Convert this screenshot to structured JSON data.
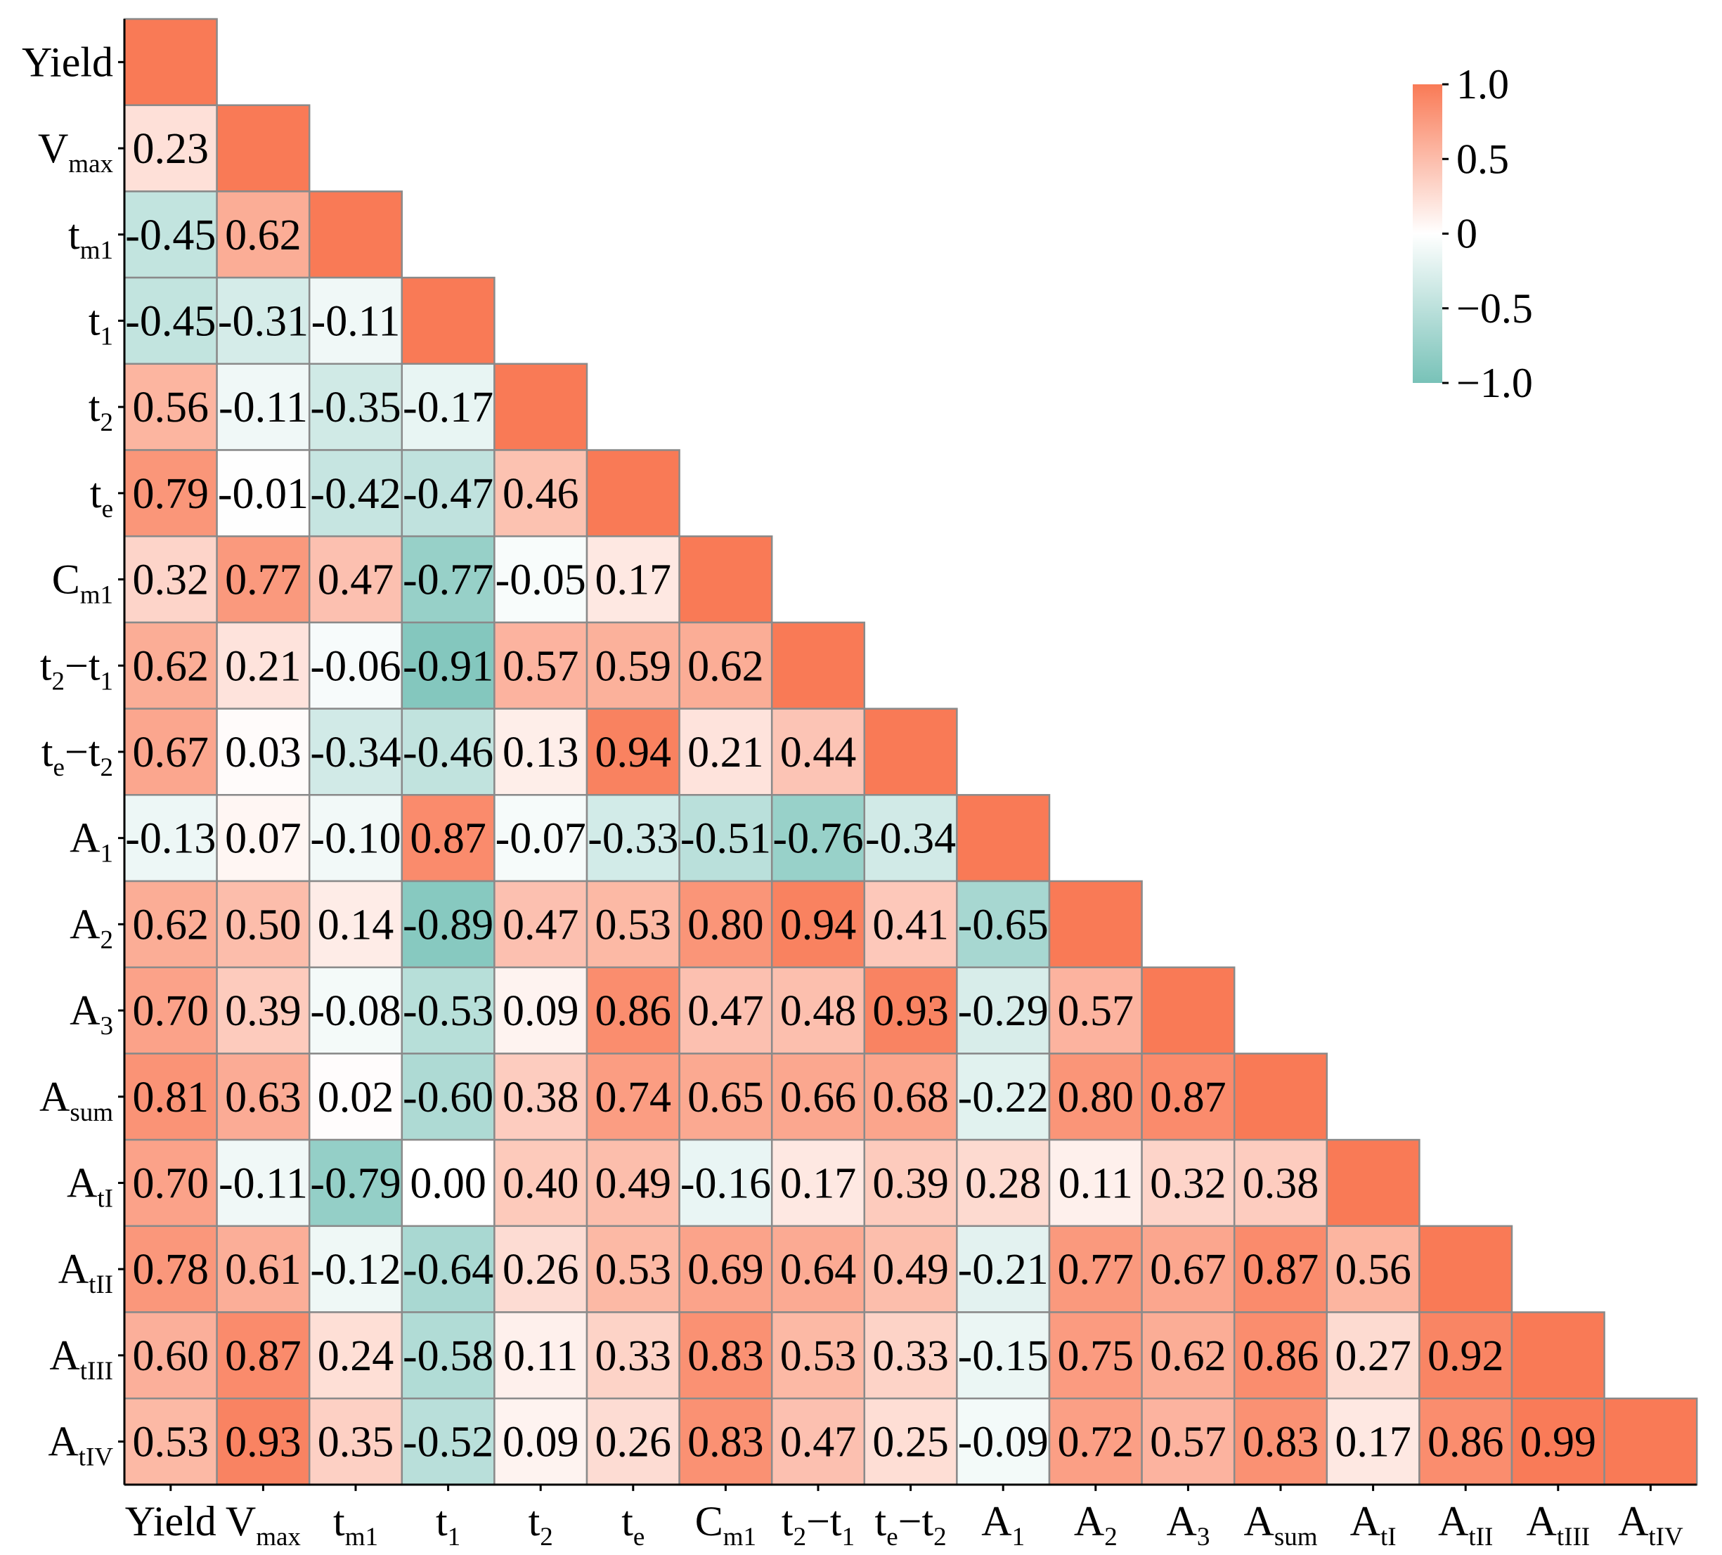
{
  "chart_data": {
    "type": "heatmap",
    "title": "",
    "variables": [
      {
        "base": "Yield",
        "sub": ""
      },
      {
        "base": "V",
        "sub": "max"
      },
      {
        "base": "t",
        "sub": "m1"
      },
      {
        "base": "t",
        "sub": "1"
      },
      {
        "base": "t",
        "sub": "2"
      },
      {
        "base": "t",
        "sub": "e"
      },
      {
        "base": "C",
        "sub": "m1"
      },
      {
        "base": "t",
        "sub": "2",
        "tail": "−t",
        "sub2": "1"
      },
      {
        "base": "t",
        "sub": "e",
        "tail": "−t",
        "sub2": "2"
      },
      {
        "base": "A",
        "sub": "1"
      },
      {
        "base": "A",
        "sub": "2"
      },
      {
        "base": "A",
        "sub": "3"
      },
      {
        "base": "A",
        "sub": "sum"
      },
      {
        "base": "A",
        "sub": "tI"
      },
      {
        "base": "A",
        "sub": "tII"
      },
      {
        "base": "A",
        "sub": "tIII"
      },
      {
        "base": "A",
        "sub": "tIV"
      }
    ],
    "lower_triangle": [
      [],
      [
        "0.23"
      ],
      [
        "-0.45",
        "0.62"
      ],
      [
        "-0.45",
        "-0.31",
        "-0.11"
      ],
      [
        "0.56",
        "-0.11",
        "-0.35",
        "-0.17"
      ],
      [
        "0.79",
        "-0.01",
        "-0.42",
        "-0.47",
        "0.46"
      ],
      [
        "0.32",
        "0.77",
        "0.47",
        "-0.77",
        "-0.05",
        "0.17"
      ],
      [
        "0.62",
        "0.21",
        "-0.06",
        "-0.91",
        "0.57",
        "0.59",
        "0.62"
      ],
      [
        "0.67",
        "0.03",
        "-0.34",
        "-0.46",
        "0.13",
        "0.94",
        "0.21",
        "0.44"
      ],
      [
        "-0.13",
        "0.07",
        "-0.10",
        "0.87",
        "-0.07",
        "-0.33",
        "-0.51",
        "-0.76",
        "-0.34"
      ],
      [
        "0.62",
        "0.50",
        "0.14",
        "-0.89",
        "0.47",
        "0.53",
        "0.80",
        "0.94",
        "0.41",
        "-0.65"
      ],
      [
        "0.70",
        "0.39",
        "-0.08",
        "-0.53",
        "0.09",
        "0.86",
        "0.47",
        "0.48",
        "0.93",
        "-0.29",
        "0.57"
      ],
      [
        "0.81",
        "0.63",
        "0.02",
        "-0.60",
        "0.38",
        "0.74",
        "0.65",
        "0.66",
        "0.68",
        "-0.22",
        "0.80",
        "0.87"
      ],
      [
        "0.70",
        "-0.11",
        "-0.79",
        "0.00",
        "0.40",
        "0.49",
        "-0.16",
        "0.17",
        "0.39",
        "0.28",
        "0.11",
        "0.32",
        "0.38"
      ],
      [
        "0.78",
        "0.61",
        "-0.12",
        "-0.64",
        "0.26",
        "0.53",
        "0.69",
        "0.64",
        "0.49",
        "-0.21",
        "0.77",
        "0.67",
        "0.87",
        "0.56"
      ],
      [
        "0.60",
        "0.87",
        "0.24",
        "-0.58",
        "0.11",
        "0.33",
        "0.83",
        "0.53",
        "0.33",
        "-0.15",
        "0.75",
        "0.62",
        "0.86",
        "0.27",
        "0.92"
      ],
      [
        "0.53",
        "0.93",
        "0.35",
        "-0.52",
        "0.09",
        "0.26",
        "0.83",
        "0.47",
        "0.25",
        "-0.09",
        "0.72",
        "0.57",
        "0.83",
        "0.17",
        "0.86",
        "0.99"
      ]
    ],
    "diagonal_value": 1.0,
    "value_range": [
      -1.0,
      1.0
    ],
    "colorbar": {
      "ticks": [
        {
          "value": 1.0,
          "label": "1.0"
        },
        {
          "value": 0.5,
          "label": "0.5"
        },
        {
          "value": 0,
          "label": "0"
        },
        {
          "value": -0.5,
          "label": "−0.5"
        },
        {
          "value": -1.0,
          "label": "−1.0"
        }
      ],
      "placement": "top-right"
    },
    "colors": {
      "positive": "#f97a56",
      "neutral": "#ffffff",
      "negative": "#78c2b8",
      "grid": "#8a8a8a"
    }
  }
}
